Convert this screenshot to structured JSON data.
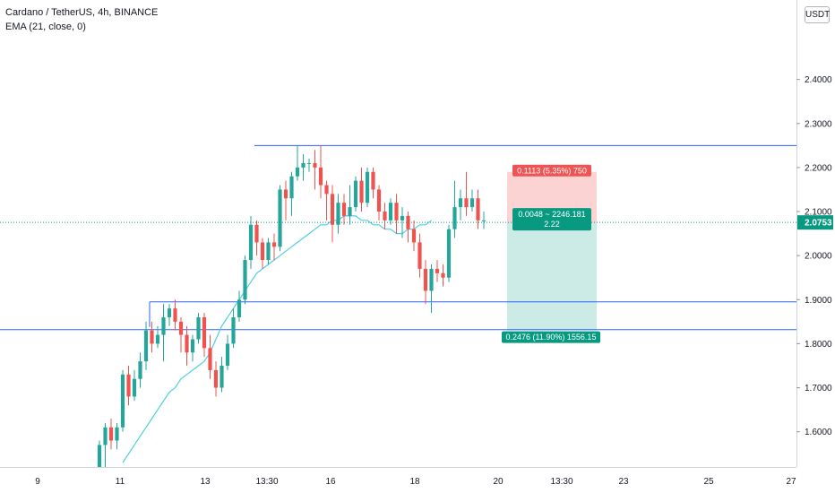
{
  "legend": {
    "title": "Cardano / TetherUS, 4h, BINANCE",
    "indicator": "EMA (21, close, 0)"
  },
  "currency_badge": "USDT",
  "colors": {
    "up": "#26a69a",
    "down": "#ef5350",
    "ema": "#4dd0e1",
    "hline": "#2962ff",
    "price_tag": "#089981",
    "stop_fill": "#fbd3d3",
    "target_fill": "#cdebe6",
    "stop_label": "#f05353",
    "target_label": "#089981"
  },
  "chart_data": {
    "type": "candlestick",
    "symbol": "Cardano / TetherUS",
    "interval": "4h",
    "exchange": "BINANCE",
    "ylim": [
      1.52,
      2.56
    ],
    "y_ticks": [
      1.6,
      1.7,
      1.8,
      1.9,
      2.0,
      2.1,
      2.2,
      2.3,
      2.4
    ],
    "y_tick_labels": [
      "1.6000",
      "1.7000",
      "1.8000",
      "1.9000",
      "2.0000",
      "2.1000",
      "2.2000",
      "2.3000",
      "2.4000"
    ],
    "x_ticks": [
      "9",
      "11",
      "13",
      "13:30",
      "16",
      "18",
      "20",
      "13:30",
      "23",
      "25",
      "27"
    ],
    "current_price": 2.0753,
    "current_price_label": "2.0753",
    "horizontal_lines": [
      2.25,
      1.895,
      1.832
    ],
    "candles": [
      [
        1.5,
        1.57,
        1.49,
        1.58
      ],
      [
        1.57,
        1.61,
        1.52,
        1.62
      ],
      [
        1.61,
        1.58,
        1.56,
        1.63
      ],
      [
        1.58,
        1.61,
        1.56,
        1.62
      ],
      [
        1.61,
        1.73,
        1.6,
        1.74
      ],
      [
        1.73,
        1.68,
        1.66,
        1.75
      ],
      [
        1.68,
        1.72,
        1.67,
        1.74
      ],
      [
        1.72,
        1.76,
        1.7,
        1.78
      ],
      [
        1.76,
        1.83,
        1.74,
        1.85
      ],
      [
        1.83,
        1.8,
        1.78,
        1.85
      ],
      [
        1.8,
        1.82,
        1.79,
        1.84
      ],
      [
        1.82,
        1.86,
        1.76,
        1.89
      ],
      [
        1.86,
        1.88,
        1.84,
        1.89
      ],
      [
        1.88,
        1.85,
        1.83,
        1.9
      ],
      [
        1.85,
        1.82,
        1.78,
        1.86
      ],
      [
        1.82,
        1.78,
        1.75,
        1.84
      ],
      [
        1.78,
        1.81,
        1.76,
        1.82
      ],
      [
        1.81,
        1.86,
        1.8,
        1.87
      ],
      [
        1.86,
        1.79,
        1.77,
        1.87
      ],
      [
        1.79,
        1.74,
        1.72,
        1.82
      ],
      [
        1.74,
        1.7,
        1.68,
        1.76
      ],
      [
        1.7,
        1.75,
        1.69,
        1.77
      ],
      [
        1.75,
        1.8,
        1.74,
        1.82
      ],
      [
        1.8,
        1.86,
        1.79,
        1.88
      ],
      [
        1.86,
        1.9,
        1.85,
        1.92
      ],
      [
        1.9,
        1.99,
        1.89,
        2.0
      ],
      [
        1.99,
        2.07,
        1.97,
        2.09
      ],
      [
        2.07,
        2.03,
        2.0,
        2.08
      ],
      [
        2.03,
        1.99,
        1.97,
        2.04
      ],
      [
        1.99,
        2.03,
        1.98,
        2.04
      ],
      [
        2.03,
        2.02,
        1.99,
        2.05
      ],
      [
        2.02,
        2.15,
        2.01,
        2.16
      ],
      [
        2.15,
        2.13,
        2.08,
        2.17
      ],
      [
        2.13,
        2.18,
        2.09,
        2.19
      ],
      [
        2.18,
        2.2,
        2.17,
        2.25
      ],
      [
        2.2,
        2.21,
        2.17,
        2.23
      ],
      [
        2.21,
        2.21,
        2.19,
        2.22
      ],
      [
        2.21,
        2.2,
        2.15,
        2.24
      ],
      [
        2.2,
        2.16,
        2.13,
        2.25
      ],
      [
        2.16,
        2.14,
        2.08,
        2.17
      ],
      [
        2.14,
        2.07,
        2.03,
        2.16
      ],
      [
        2.07,
        2.12,
        2.05,
        2.14
      ],
      [
        2.12,
        2.09,
        2.07,
        2.14
      ],
      [
        2.09,
        2.11,
        2.07,
        2.16
      ],
      [
        2.11,
        2.17,
        2.1,
        2.18
      ],
      [
        2.17,
        2.12,
        2.1,
        2.2
      ],
      [
        2.12,
        2.19,
        2.11,
        2.2
      ],
      [
        2.19,
        2.15,
        2.13,
        2.2
      ],
      [
        2.15,
        2.1,
        2.08,
        2.16
      ],
      [
        2.1,
        2.08,
        2.06,
        2.12
      ],
      [
        2.08,
        2.12,
        2.07,
        2.13
      ],
      [
        2.12,
        2.08,
        2.05,
        2.14
      ],
      [
        2.08,
        2.09,
        2.04,
        2.11
      ],
      [
        2.09,
        2.06,
        2.03,
        2.1
      ],
      [
        2.06,
        2.03,
        2.01,
        2.08
      ],
      [
        2.03,
        1.97,
        1.95,
        2.05
      ],
      [
        1.97,
        1.92,
        1.89,
        1.99
      ],
      [
        1.92,
        1.97,
        1.87,
        1.98
      ],
      [
        1.97,
        1.96,
        1.94,
        1.99
      ],
      [
        1.96,
        1.95,
        1.93,
        1.98
      ],
      [
        1.95,
        2.06,
        1.94,
        2.07
      ],
      [
        2.06,
        2.11,
        2.04,
        2.17
      ],
      [
        2.11,
        2.13,
        2.08,
        2.15
      ],
      [
        2.13,
        2.11,
        2.09,
        2.19
      ],
      [
        2.11,
        2.13,
        2.1,
        2.15
      ],
      [
        2.13,
        2.08,
        2.06,
        2.15
      ],
      [
        2.08,
        2.08,
        2.06,
        2.1
      ]
    ],
    "ema": [
      1.53,
      1.55,
      1.57,
      1.59,
      1.61,
      1.63,
      1.65,
      1.67,
      1.69,
      1.7,
      1.72,
      1.73,
      1.74,
      1.75,
      1.76,
      1.78,
      1.81,
      1.84,
      1.86,
      1.88,
      1.9,
      1.92,
      1.94,
      1.96,
      1.97,
      1.98,
      1.99,
      2.0,
      2.01,
      2.02,
      2.03,
      2.04,
      2.05,
      2.06,
      2.07,
      2.07,
      2.08,
      2.08,
      2.09,
      2.09,
      2.09,
      2.08,
      2.08,
      2.07,
      2.07,
      2.06,
      2.06,
      2.05,
      2.05,
      2.06,
      2.06,
      2.07,
      2.07,
      2.08
    ],
    "position": {
      "entry": 2.0753,
      "stop": 2.19,
      "target": 1.83,
      "stop_label": "0.1113 (5.35%) 750",
      "entry_label_line1": "0.0048 ~ 2246.181",
      "entry_label_line2": "2.22",
      "target_label": "0.2476 (11.90%) 1556.15"
    }
  }
}
